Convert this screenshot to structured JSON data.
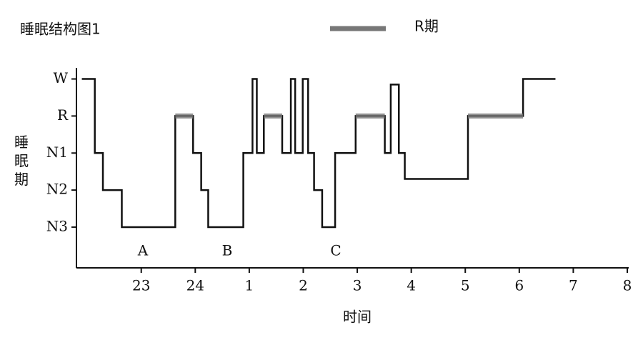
{
  "chart_data": {
    "type": "line",
    "title": "睡眠结构图1",
    "x_label": "时间",
    "y_label": "睡眠期",
    "x": [
      21.9,
      22.14,
      22.14,
      22.29,
      22.29,
      22.64,
      22.64,
      23.63,
      23.63,
      23.96,
      23.96,
      24.11,
      24.11,
      24.24,
      24.24,
      24.89,
      24.89,
      25.06,
      25.06,
      25.14,
      25.14,
      25.27,
      25.27,
      25.61,
      25.61,
      25.77,
      25.77,
      25.85,
      25.85,
      25.99,
      25.99,
      26.09,
      26.09,
      26.2,
      26.2,
      26.35,
      26.35,
      26.59,
      26.59,
      26.97,
      26.97,
      27.51,
      27.51,
      27.62,
      27.62,
      27.77,
      27.77,
      27.88,
      27.88,
      29.05,
      29.05,
      30.07,
      30.07,
      30.67
    ],
    "series": [
      {
        "color": "#111111",
        "values": [
          4,
          4,
          2,
          2,
          1,
          1,
          0,
          0,
          3,
          3,
          2,
          2,
          1,
          1,
          0,
          0,
          2,
          2,
          4,
          4,
          2,
          2,
          3,
          3,
          2,
          2,
          4,
          4,
          2,
          2,
          4,
          4,
          2,
          2,
          1,
          1,
          0,
          0,
          2,
          2,
          3,
          3,
          2,
          2,
          3.85,
          3.85,
          2,
          2,
          1.3,
          1.3,
          3,
          3,
          4,
          4
        ]
      },
      {
        "name": "R期",
        "color": "#777777",
        "values": [
          null,
          null,
          null,
          null,
          null,
          null,
          null,
          null,
          3,
          3,
          null,
          null,
          null,
          null,
          null,
          null,
          null,
          null,
          null,
          null,
          null,
          null,
          3,
          3,
          null,
          null,
          null,
          null,
          null,
          null,
          null,
          null,
          null,
          null,
          null,
          null,
          null,
          null,
          null,
          null,
          3,
          3,
          null,
          null,
          null,
          null,
          null,
          null,
          null,
          null,
          3,
          3,
          null,
          null
        ]
      }
    ],
    "annotations": [
      "A",
      "B",
      "C"
    ],
    "xlim": [
      21.8,
      32
    ],
    "xticks": [
      23,
      24,
      {
        "value": 25,
        "label": "1"
      },
      {
        "value": 26,
        "label": "2"
      },
      {
        "value": 27,
        "label": "3"
      },
      {
        "value": 28,
        "label": "4"
      },
      {
        "value": 29,
        "label": "5"
      },
      {
        "value": 30,
        "label": "6"
      },
      {
        "value": 31,
        "label": "7"
      },
      {
        "value": 32,
        "label": "8"
      }
    ],
    "ylim": [
      -1.1,
      4.3
    ],
    "yticks": [
      {
        "value": 4,
        "label": "W"
      },
      {
        "value": 3,
        "label": "R"
      },
      {
        "value": 2,
        "label": "N1"
      },
      {
        "value": 1,
        "label": "N2"
      },
      {
        "value": 0,
        "label": "N3"
      }
    ]
  }
}
